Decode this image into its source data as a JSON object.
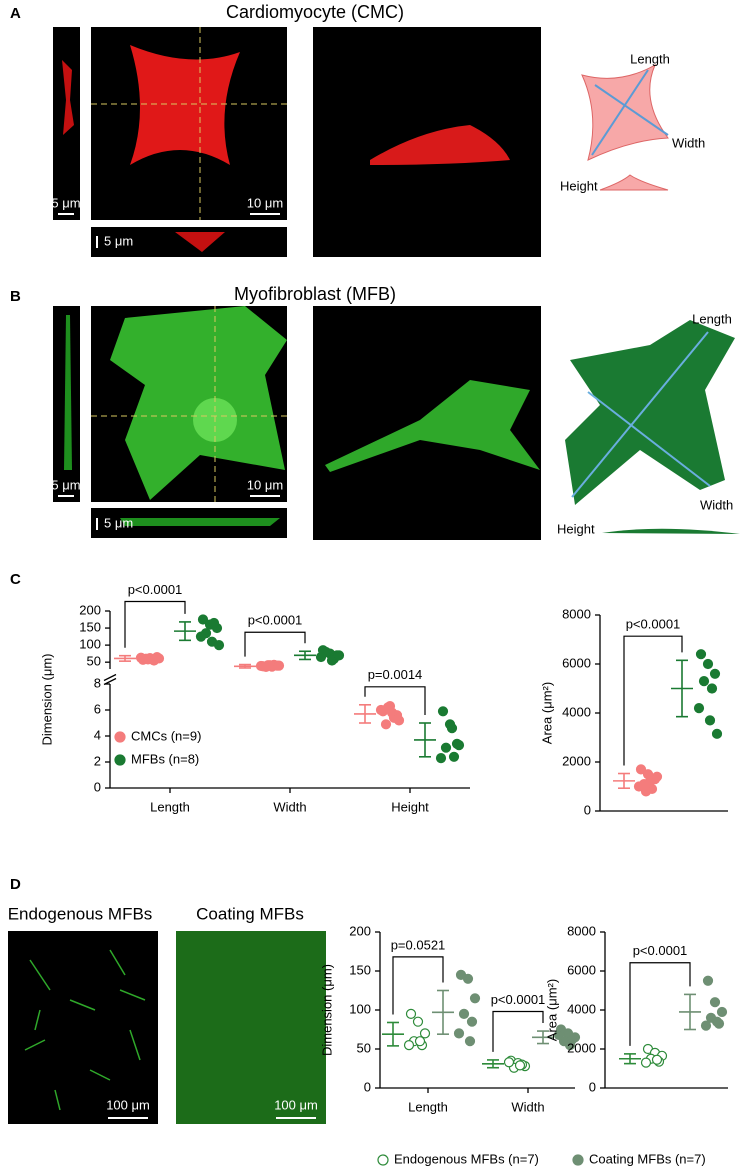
{
  "panels": {
    "A": {
      "label": "A",
      "title": "Cardiomyocyte (CMC)",
      "scale_bars": [
        "5 μm",
        "10 μm",
        "5 μm"
      ],
      "schematic": [
        "Length",
        "Width",
        "Height"
      ]
    },
    "B": {
      "label": "B",
      "title": "Myofibroblast (MFB)",
      "scale_bars": [
        "5 μm",
        "10 μm",
        "5 μm"
      ],
      "schematic": [
        "Length",
        "Width",
        "Height"
      ]
    },
    "C": {
      "label": "C"
    },
    "D": {
      "label": "D",
      "images": [
        "Endogenous MFBs",
        "Coating MFBs"
      ],
      "scale_bars": [
        "100 μm",
        "100 μm"
      ]
    }
  },
  "chart_data": [
    {
      "type": "dotplot",
      "y_label": "Dimension (μm)",
      "categories": [
        "Length",
        "Width",
        "Height"
      ],
      "segments": [
        {
          "ylim": [
            0,
            8
          ],
          "yticks": [
            0,
            2,
            4,
            6,
            8
          ]
        },
        {
          "ylim": [
            30,
            200
          ],
          "yticks": [
            50,
            100,
            150,
            200
          ]
        }
      ],
      "legend": "lower left",
      "series": [
        {
          "name": "CMCs (n=9)",
          "color": "#f47c7c",
          "filled": true,
          "mean": [
            61,
            38,
            5.7
          ],
          "sd": [
            8,
            5,
            0.7
          ],
          "points": [
            [
              57,
              62,
              65,
              60,
              55,
              63,
              59,
              61,
              58
            ],
            [
              38,
              41,
              40,
              36,
              42,
              39,
              37,
              40,
              41
            ],
            [
              5.9,
              6.3,
              5.6,
              4.9,
              5.4,
              6.0,
              5.8,
              5.2,
              6.2
            ]
          ]
        },
        {
          "name": "MFBs  (n=8)",
          "color": "#1a7a32",
          "filled": true,
          "mean": [
            141,
            70,
            3.7
          ],
          "sd": [
            27,
            12,
            1.3
          ],
          "points": [
            [
              175,
              160,
              150,
              135,
              165,
              125,
              110,
              100
            ],
            [
              85,
              75,
              70,
              80,
              60,
              65,
              55,
              70
            ],
            [
              5.9,
              4.9,
              3.4,
              3.1,
              2.4,
              2.3,
              4.6,
              3.3
            ]
          ]
        }
      ],
      "annotations": [
        "p<0.0001",
        "p<0.0001",
        "p=0.0014"
      ]
    },
    {
      "type": "dotplot",
      "y_label": "Area (μm²)",
      "categories": [
        null
      ],
      "ylim": [
        0,
        8000
      ],
      "yticks": [
        0,
        2000,
        4000,
        6000,
        8000
      ],
      "series": [
        {
          "color": "#f47c7c",
          "filled": true,
          "mean": [
            1230
          ],
          "sd": [
            300
          ],
          "points": [
            [
              1700,
              1500,
              1300,
              1100,
              900,
              1000,
              1200,
              1400,
              800
            ]
          ]
        },
        {
          "color": "#1a7a32",
          "filled": true,
          "mean": [
            5000
          ],
          "sd": [
            1150
          ],
          "points": [
            [
              6400,
              6000,
              5600,
              5300,
              5000,
              4200,
              3700,
              3150
            ]
          ]
        }
      ],
      "annotations": [
        "p<0.0001"
      ]
    },
    {
      "type": "dotplot",
      "y_label": "Dimension (μm)",
      "categories": [
        "Length",
        "Width"
      ],
      "ylim": [
        0,
        200
      ],
      "yticks": [
        0,
        50,
        100,
        150,
        200
      ],
      "legend": "below",
      "series": [
        {
          "name": "Endogenous MFBs (n=7)",
          "color": "#2e8b3a",
          "filled": false,
          "mean": [
            69,
            31
          ],
          "sd": [
            15,
            5
          ],
          "points": [
            [
              95,
              85,
              70,
              60,
              55,
              55,
              60
            ],
            [
              35,
              32,
              28,
              26,
              30,
              33,
              29
            ]
          ]
        },
        {
          "name": "Coating MFBs (n=7)",
          "color": "#6e8f73",
          "filled": true,
          "mean": [
            97,
            65
          ],
          "sd": [
            28,
            8
          ],
          "points": [
            [
              145,
              140,
              115,
              95,
              85,
              70,
              60
            ],
            [
              75,
              70,
              65,
              60,
              62,
              68,
              55
            ]
          ]
        }
      ],
      "annotations": [
        "p=0.0521",
        "p<0.0001"
      ]
    },
    {
      "type": "dotplot",
      "y_label": "Area (μm²)",
      "categories": [
        null
      ],
      "ylim": [
        0,
        8000
      ],
      "yticks": [
        0,
        2000,
        4000,
        6000,
        8000
      ],
      "series": [
        {
          "color": "#2e8b3a",
          "filled": false,
          "mean": [
            1500
          ],
          "sd": [
            250
          ],
          "points": [
            [
              2000,
              1800,
              1650,
              1500,
              1350,
              1300,
              1450
            ]
          ]
        },
        {
          "color": "#6e8f73",
          "filled": true,
          "mean": [
            3900
          ],
          "sd": [
            900
          ],
          "points": [
            [
              5500,
              4400,
              3900,
              3600,
              3300,
              3200,
              3400
            ]
          ]
        }
      ],
      "annotations": [
        "p<0.0001"
      ]
    }
  ]
}
